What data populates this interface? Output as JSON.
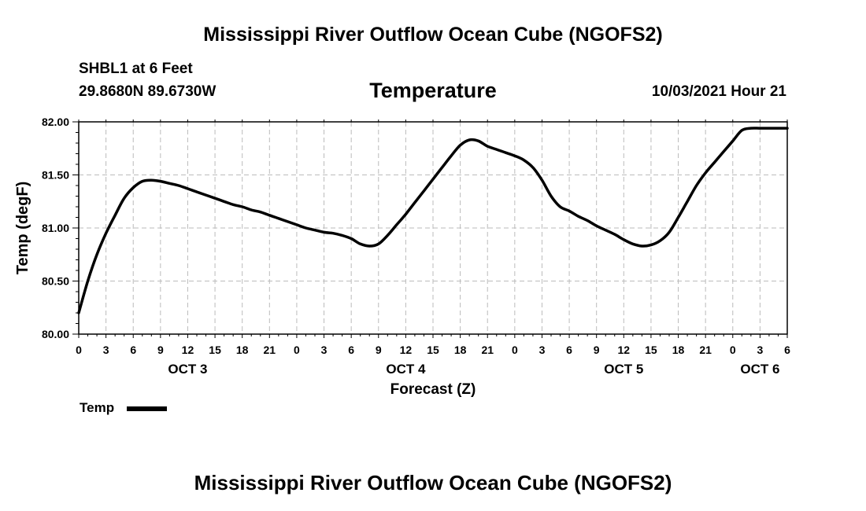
{
  "header": {
    "title": "Mississippi River Outflow Ocean Cube (NGOFS2)",
    "station": "SHBL1 at 6 Feet",
    "coords": "29.8680N  89.6730W",
    "variable": "Temperature",
    "datetime": "10/03/2021 Hour 21"
  },
  "footer": {
    "title": "Mississippi River Outflow Ocean Cube (NGOFS2)"
  },
  "legend": {
    "label": "Temp"
  },
  "colors": {
    "line": "#000000",
    "grid": "#bbbbbb"
  },
  "chart_data": {
    "type": "line",
    "ylabel": "Temp (degF)",
    "xlabel": "Forecast (Z)",
    "ylim": [
      80.0,
      82.0
    ],
    "xlim": [
      0,
      78
    ],
    "grid": true,
    "yticks": [
      {
        "value": 80.0,
        "label": "80.00"
      },
      {
        "value": 80.5,
        "label": "80.50"
      },
      {
        "value": 81.0,
        "label": "81.00"
      },
      {
        "value": 81.5,
        "label": "81.50"
      },
      {
        "value": 82.0,
        "label": "82.00"
      }
    ],
    "xticks": [
      {
        "value": 0,
        "label": "0"
      },
      {
        "value": 3,
        "label": "3"
      },
      {
        "value": 6,
        "label": "6"
      },
      {
        "value": 9,
        "label": "9"
      },
      {
        "value": 12,
        "label": "12"
      },
      {
        "value": 15,
        "label": "15"
      },
      {
        "value": 18,
        "label": "18"
      },
      {
        "value": 21,
        "label": "21"
      },
      {
        "value": 24,
        "label": "0"
      },
      {
        "value": 27,
        "label": "3"
      },
      {
        "value": 30,
        "label": "6"
      },
      {
        "value": 33,
        "label": "9"
      },
      {
        "value": 36,
        "label": "12"
      },
      {
        "value": 39,
        "label": "15"
      },
      {
        "value": 42,
        "label": "18"
      },
      {
        "value": 45,
        "label": "21"
      },
      {
        "value": 48,
        "label": "0"
      },
      {
        "value": 51,
        "label": "3"
      },
      {
        "value": 54,
        "label": "6"
      },
      {
        "value": 57,
        "label": "9"
      },
      {
        "value": 60,
        "label": "12"
      },
      {
        "value": 63,
        "label": "15"
      },
      {
        "value": 66,
        "label": "18"
      },
      {
        "value": 69,
        "label": "21"
      },
      {
        "value": 72,
        "label": "0"
      },
      {
        "value": 75,
        "label": "3"
      },
      {
        "value": 78,
        "label": "6"
      }
    ],
    "day_labels": [
      {
        "value": 12,
        "label": "OCT 3"
      },
      {
        "value": 36,
        "label": "OCT 4"
      },
      {
        "value": 60,
        "label": "OCT 5"
      },
      {
        "value": 75,
        "label": "OCT 6"
      }
    ],
    "series": [
      {
        "name": "Temp",
        "x": [
          0,
          1,
          2,
          3,
          4,
          5,
          6,
          7,
          8,
          9,
          10,
          11,
          12,
          13,
          14,
          15,
          16,
          17,
          18,
          19,
          20,
          21,
          22,
          23,
          24,
          25,
          26,
          27,
          28,
          29,
          30,
          31,
          32,
          33,
          34,
          35,
          36,
          37,
          38,
          39,
          40,
          41,
          42,
          43,
          44,
          45,
          46,
          47,
          48,
          49,
          50,
          51,
          52,
          53,
          54,
          55,
          56,
          57,
          58,
          59,
          60,
          61,
          62,
          63,
          64,
          65,
          66,
          67,
          68,
          69,
          70,
          71,
          72,
          73,
          74,
          75,
          76,
          77,
          78
        ],
        "values": [
          80.2,
          80.5,
          80.75,
          80.95,
          81.12,
          81.28,
          81.38,
          81.44,
          81.45,
          81.44,
          81.42,
          81.4,
          81.37,
          81.34,
          81.31,
          81.28,
          81.25,
          81.22,
          81.2,
          81.17,
          81.15,
          81.12,
          81.09,
          81.06,
          81.03,
          81.0,
          80.98,
          80.96,
          80.95,
          80.93,
          80.9,
          80.85,
          80.83,
          80.85,
          80.93,
          81.03,
          81.13,
          81.24,
          81.35,
          81.46,
          81.57,
          81.68,
          81.78,
          81.83,
          81.82,
          81.77,
          81.74,
          81.71,
          81.68,
          81.64,
          81.57,
          81.45,
          81.3,
          81.2,
          81.16,
          81.11,
          81.07,
          81.02,
          80.98,
          80.94,
          80.89,
          80.85,
          80.83,
          80.84,
          80.88,
          80.96,
          81.1,
          81.25,
          81.4,
          81.52,
          81.62,
          81.72,
          81.82,
          81.92,
          81.94,
          81.94,
          81.94,
          81.94,
          81.94
        ]
      }
    ]
  }
}
